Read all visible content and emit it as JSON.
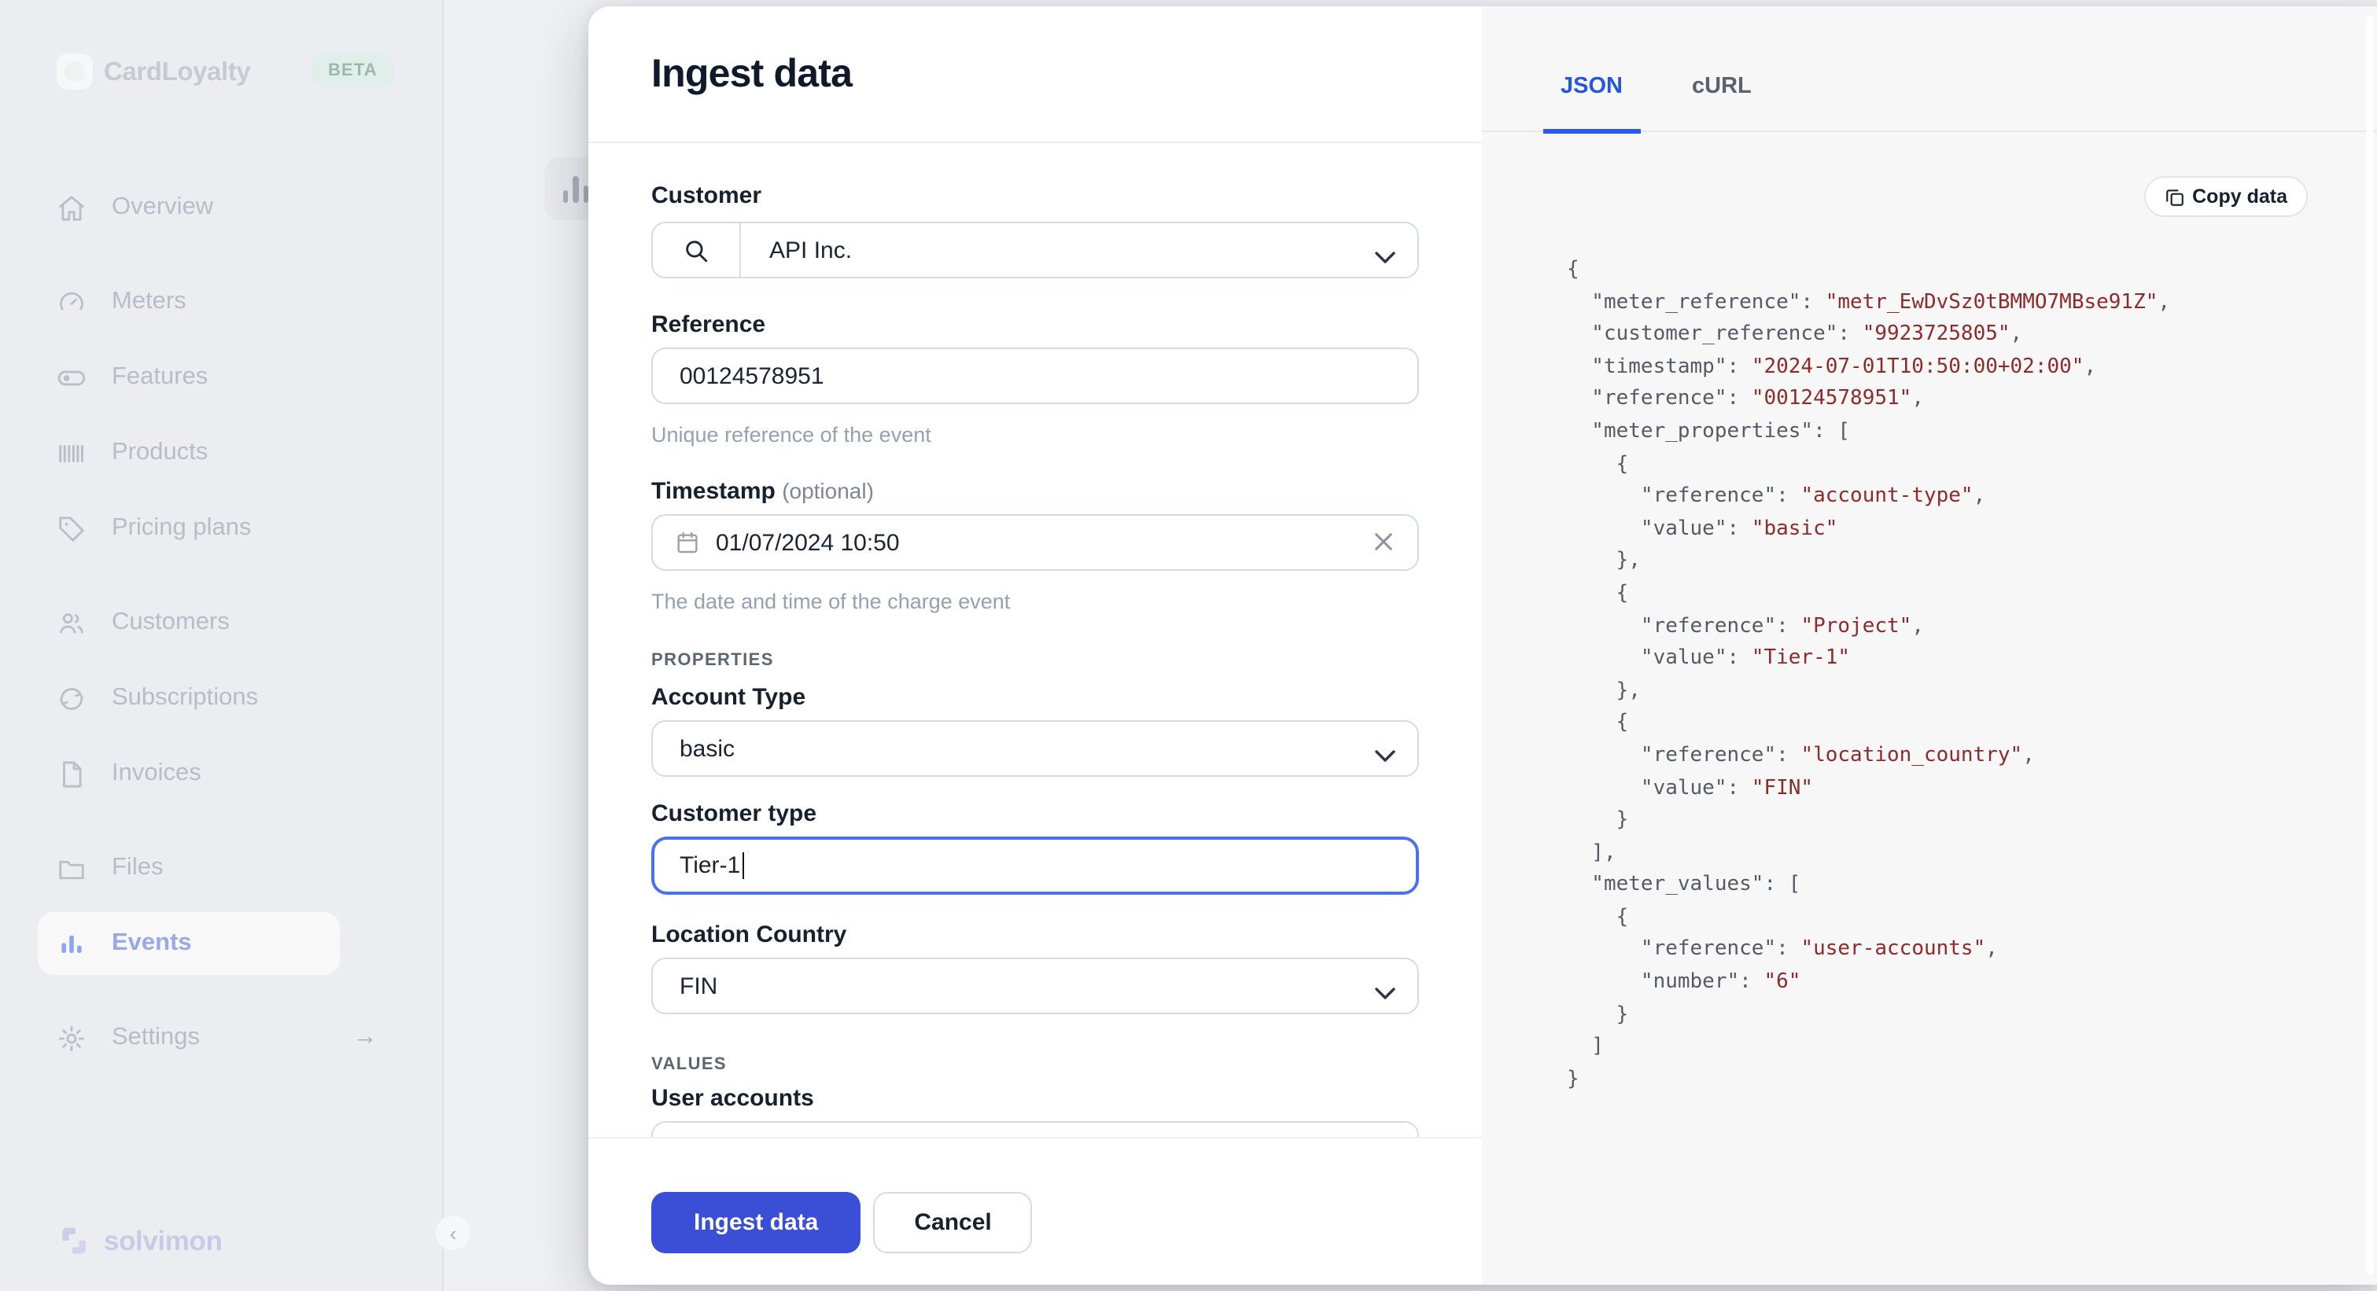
{
  "sidebar": {
    "logo": {
      "name": "CardLoyalty",
      "badge": "BETA"
    },
    "items": [
      {
        "label": "Overview",
        "icon": "home-icon"
      },
      {
        "label": "Meters",
        "icon": "gauge-icon"
      },
      {
        "label": "Features",
        "icon": "toggle-icon"
      },
      {
        "label": "Products",
        "icon": "barcode-icon"
      },
      {
        "label": "Pricing plans",
        "icon": "tag-icon"
      },
      {
        "label": "Customers",
        "icon": "users-icon"
      },
      {
        "label": "Subscriptions",
        "icon": "refresh-icon"
      },
      {
        "label": "Invoices",
        "icon": "document-icon"
      },
      {
        "label": "Files",
        "icon": "folder-icon"
      },
      {
        "label": "Events",
        "icon": "bar-chart-icon",
        "active": true
      },
      {
        "label": "Settings",
        "icon": "gear-icon"
      }
    ],
    "footer_logo": "solvimon"
  },
  "modal": {
    "title": "Ingest data",
    "customer": {
      "label": "Customer",
      "value": "API Inc."
    },
    "reference": {
      "label": "Reference",
      "value": "00124578951",
      "helper": "Unique reference of the event"
    },
    "timestamp": {
      "label": "Timestamp",
      "optional": "(optional)",
      "value": "01/07/2024 10:50",
      "helper": "The date and time of the charge event"
    },
    "properties_section": "PROPERTIES",
    "account_type": {
      "label": "Account Type",
      "value": "basic"
    },
    "customer_type": {
      "label": "Customer type",
      "value": "Tier-1"
    },
    "location_country": {
      "label": "Location Country",
      "value": "FIN"
    },
    "values_section": "VALUES",
    "user_accounts": {
      "label": "User accounts",
      "value": "6"
    },
    "footer": {
      "submit_label": "Ingest data",
      "cancel_label": "Cancel"
    }
  },
  "code_panel": {
    "tabs": [
      {
        "label": "JSON",
        "active": true
      },
      {
        "label": "cURL",
        "active": false
      }
    ],
    "copy_button": "Copy data",
    "payload": {
      "meter_reference": "metr_EwDvSz0tBMMO7MBse91Z",
      "customer_reference": "9923725805",
      "timestamp": "2024-07-01T10:50:00+02:00",
      "reference": "00124578951",
      "meter_properties": [
        {
          "reference": "account-type",
          "value": "basic"
        },
        {
          "reference": "Project",
          "value": "Tier-1"
        },
        {
          "reference": "location_country",
          "value": "FIN"
        }
      ],
      "meter_values": [
        {
          "reference": "user-accounts",
          "number": "6"
        }
      ]
    }
  },
  "colors": {
    "primary_button": "#3a4fd5",
    "focus_ring": "#4a72f0",
    "tab_active": "#2456e0",
    "code_string": "#8d2b2b",
    "code_key": "#545b64"
  }
}
